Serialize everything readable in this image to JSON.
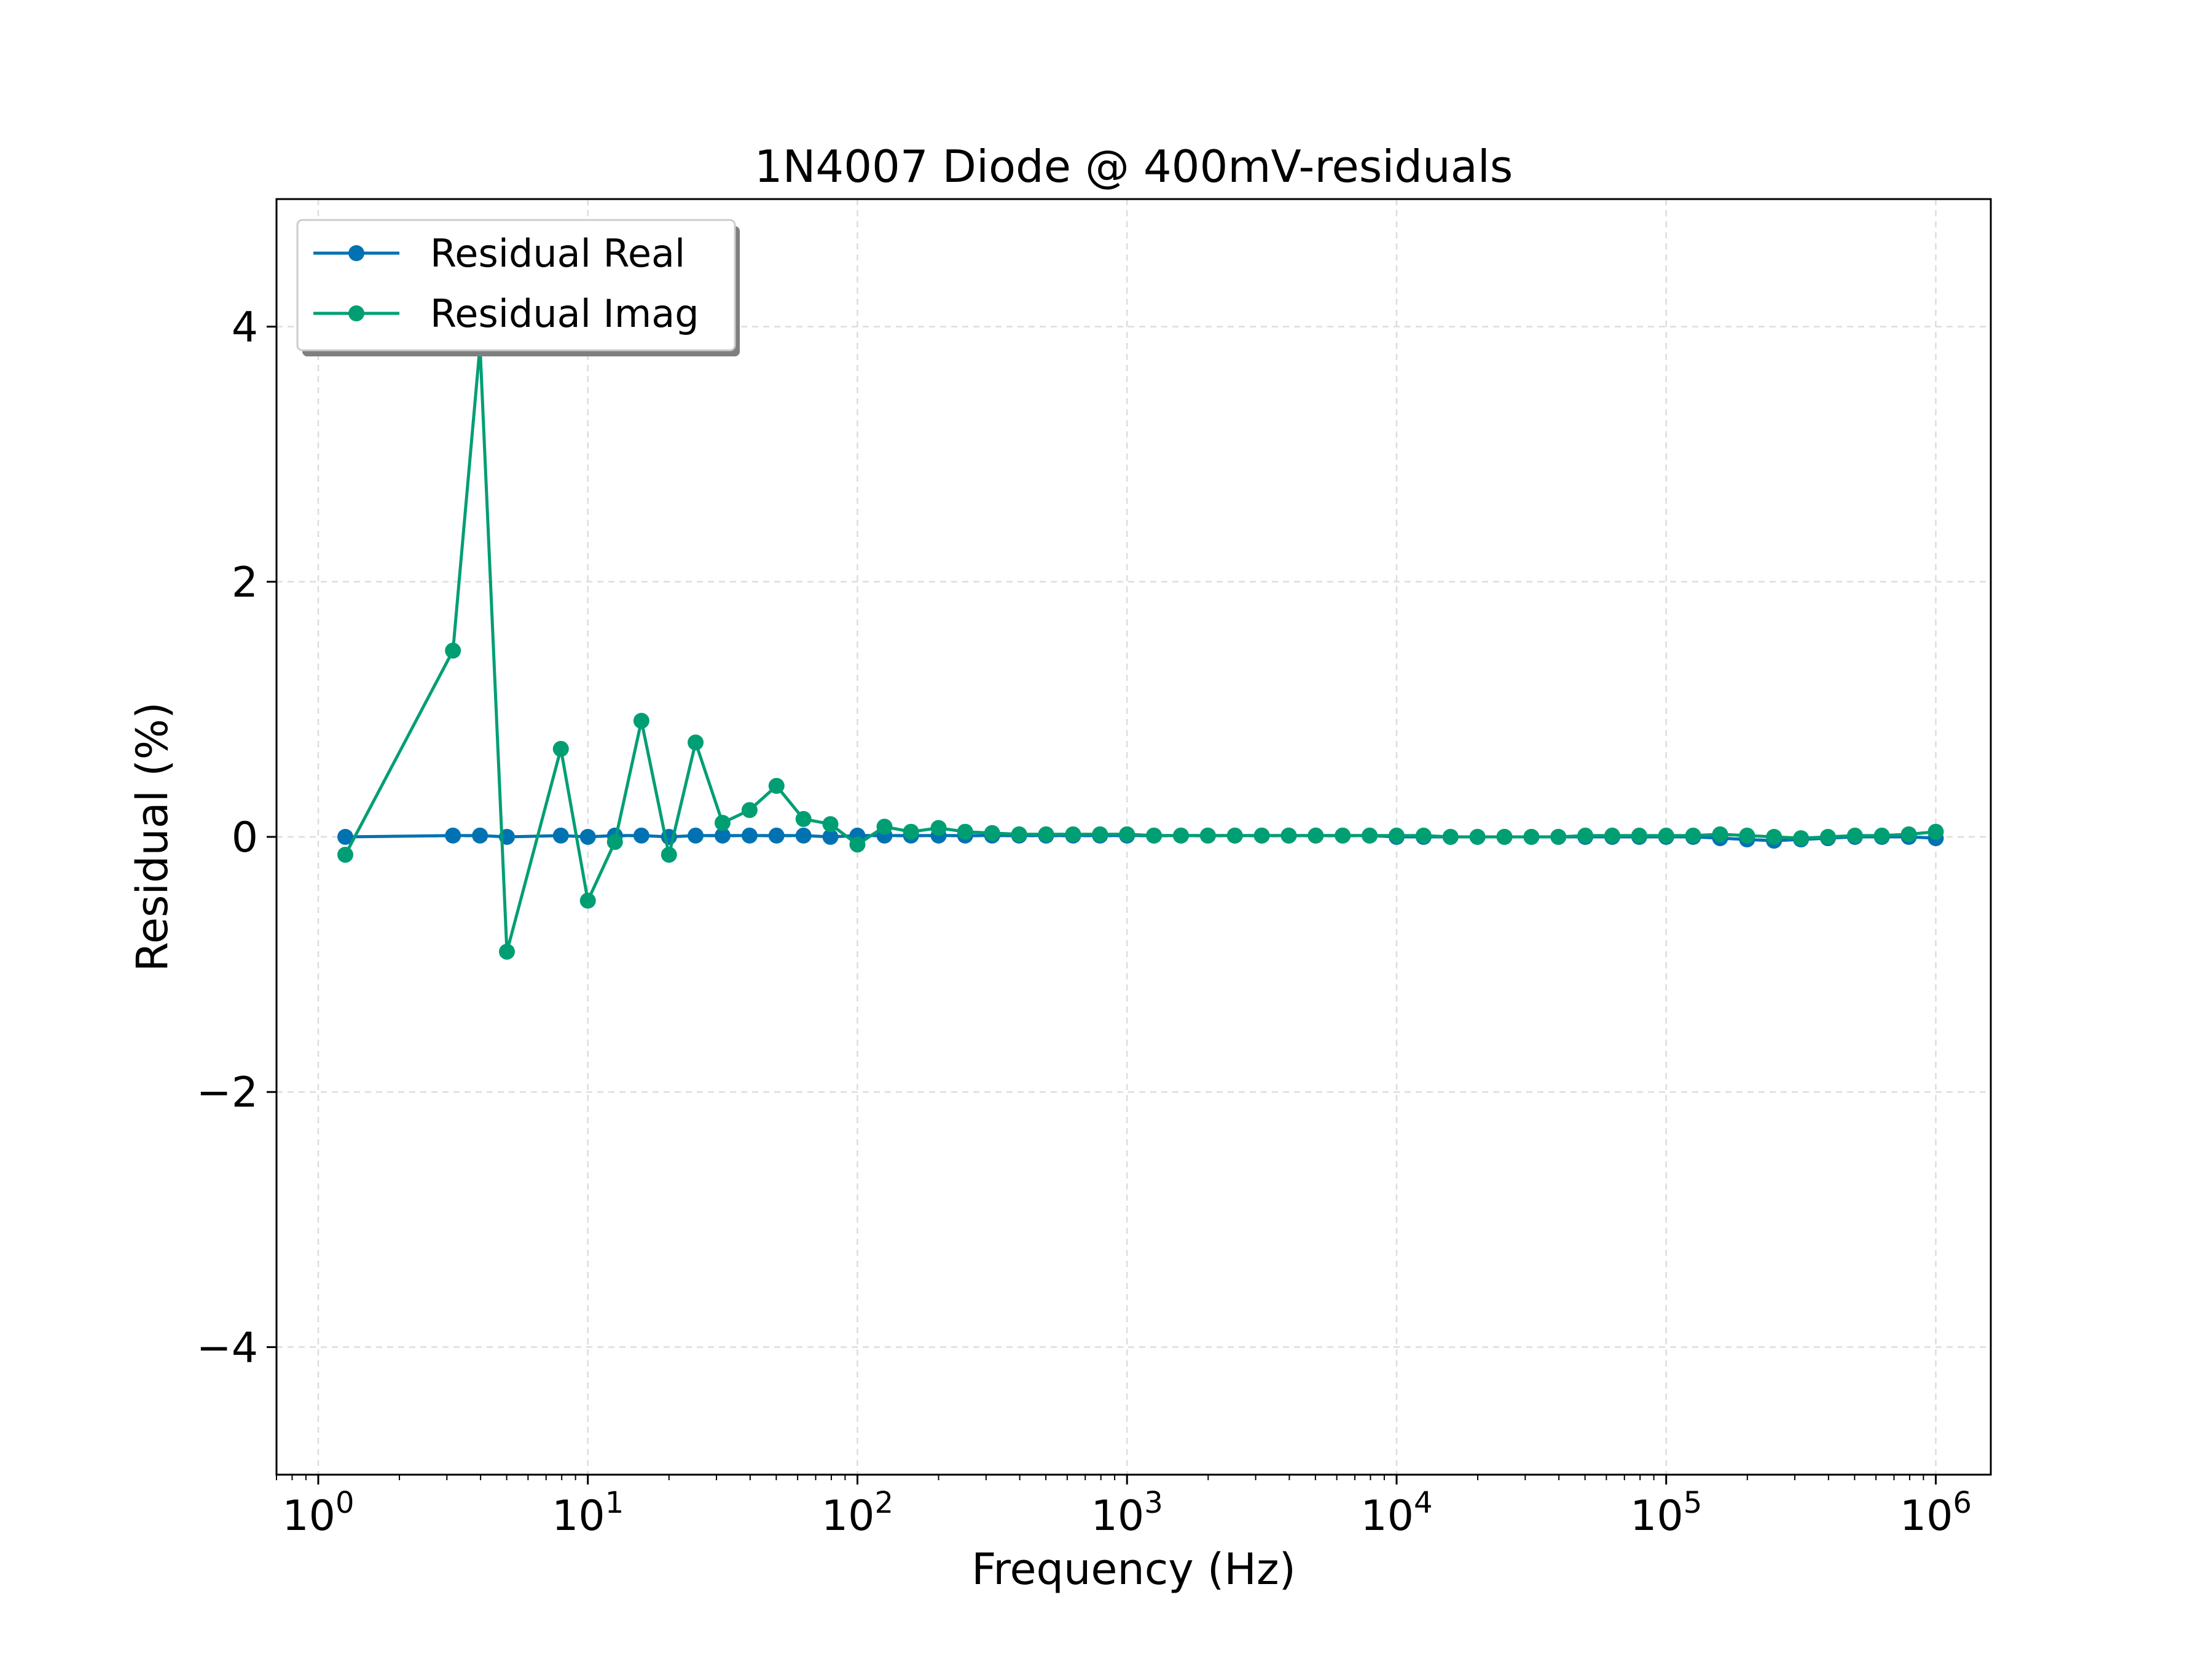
{
  "chart_data": {
    "type": "line",
    "title": "1N4007 Diode @ 400mV-residuals",
    "xlabel": "Frequency (Hz)",
    "ylabel": "Residual (%)",
    "xscale": "log",
    "xlim": [
      0.7,
      1600000
    ],
    "ylim": [
      -5,
      5
    ],
    "grid": true,
    "legend_position": "upper-left",
    "x_ticks": [
      {
        "value": 1,
        "base": "10",
        "exp": "0"
      },
      {
        "value": 10,
        "base": "10",
        "exp": "1"
      },
      {
        "value": 100,
        "base": "10",
        "exp": "2"
      },
      {
        "value": 1000,
        "base": "10",
        "exp": "3"
      },
      {
        "value": 10000,
        "base": "10",
        "exp": "4"
      },
      {
        "value": 100000,
        "base": "10",
        "exp": "5"
      },
      {
        "value": 1000000,
        "base": "10",
        "exp": "6"
      }
    ],
    "y_ticks": [
      {
        "value": -4,
        "label": "−4"
      },
      {
        "value": -2,
        "label": "−2"
      },
      {
        "value": 0,
        "label": "0"
      },
      {
        "value": 2,
        "label": "2"
      },
      {
        "value": 4,
        "label": "4"
      }
    ],
    "x": [
      1.26,
      3.16,
      3.98,
      5.01,
      7.94,
      10,
      12.6,
      15.8,
      20,
      25.1,
      31.6,
      39.8,
      50.1,
      63.1,
      79.4,
      100,
      126,
      158,
      200,
      251,
      316,
      398,
      501,
      631,
      794,
      1000,
      1259,
      1585,
      1995,
      2512,
      3162,
      3981,
      5012,
      6310,
      7943,
      10000,
      12589,
      15849,
      19953,
      25119,
      31623,
      39811,
      50119,
      63096,
      79433,
      100000,
      125893,
      158489,
      199526,
      251189,
      316228,
      398107,
      501187,
      630957,
      794328,
      1000000
    ],
    "series": [
      {
        "name": "Residual Real",
        "color": "#0072B2",
        "values": [
          0.0,
          0.01,
          0.01,
          0.0,
          0.01,
          0.0,
          0.01,
          0.01,
          0.0,
          0.01,
          0.01,
          0.01,
          0.01,
          0.01,
          0.0,
          0.01,
          0.01,
          0.01,
          0.01,
          0.01,
          0.01,
          0.01,
          0.01,
          0.01,
          0.01,
          0.01,
          0.01,
          0.01,
          0.01,
          0.01,
          0.01,
          0.01,
          0.01,
          0.01,
          0.01,
          0.0,
          0.0,
          0.0,
          0.0,
          0.0,
          0.0,
          0.0,
          0.0,
          0.0,
          0.0,
          0.0,
          0.0,
          -0.01,
          -0.02,
          -0.03,
          -0.02,
          -0.01,
          0.0,
          0.0,
          0.0,
          -0.01
        ]
      },
      {
        "name": "Residual Imag",
        "color": "#009E73",
        "values": [
          -0.14,
          1.46,
          3.85,
          -0.9,
          0.69,
          -0.5,
          -0.04,
          0.91,
          -0.14,
          0.74,
          0.11,
          0.21,
          0.4,
          0.14,
          0.1,
          -0.06,
          0.08,
          0.04,
          0.07,
          0.04,
          0.03,
          0.02,
          0.02,
          0.02,
          0.02,
          0.02,
          0.01,
          0.01,
          0.01,
          0.01,
          0.01,
          0.01,
          0.01,
          0.01,
          0.01,
          0.01,
          0.01,
          0.0,
          0.0,
          0.0,
          0.0,
          0.0,
          0.01,
          0.01,
          0.01,
          0.01,
          0.01,
          0.02,
          0.01,
          0.0,
          -0.01,
          0.0,
          0.01,
          0.01,
          0.02,
          0.04
        ]
      }
    ]
  }
}
